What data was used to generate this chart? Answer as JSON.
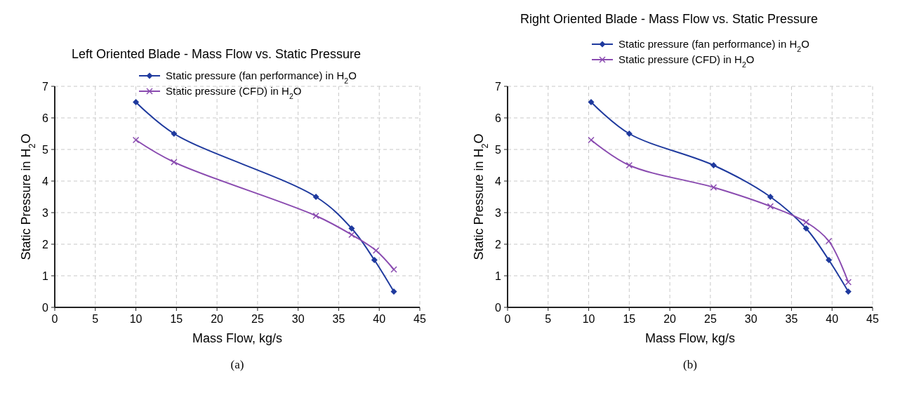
{
  "chart_data": [
    {
      "type": "line",
      "title": "Left Oriented Blade - Mass Flow vs. Static Pressure",
      "xlabel": "Mass Flow, kg/s",
      "ylabel": "Static Pressure in H$_{2}$O",
      "xlim": [
        0,
        45
      ],
      "xticks": [
        0,
        5,
        10,
        15,
        20,
        25,
        30,
        35,
        40,
        45
      ],
      "ylim": [
        0,
        7
      ],
      "yticks": [
        0,
        1,
        2,
        3,
        4,
        5,
        6,
        7
      ],
      "grid": true,
      "legend": "top",
      "annotations": [
        "(a)"
      ],
      "series": [
        {
          "name": "Static pressure (fan performance) in H$_{2}$O",
          "color": "#1f3a9e",
          "marker": "diamond",
          "x": [
            10,
            14.7,
            32.2,
            36.6,
            39.4,
            41.8
          ],
          "values": [
            6.5,
            5.5,
            3.5,
            2.5,
            1.5,
            0.5
          ]
        },
        {
          "name": "Static pressure (CFD) in H$_{2}$O",
          "color": "#8a4bb0",
          "marker": "cross",
          "x": [
            10,
            14.7,
            32.2,
            36.6,
            39.6,
            41.8
          ],
          "values": [
            5.3,
            4.6,
            2.9,
            2.3,
            1.8,
            1.2
          ]
        }
      ]
    },
    {
      "type": "line",
      "title": "Right Oriented Blade - Mass Flow vs. Static Pressure",
      "xlabel": "Mass Flow, kg/s",
      "ylabel": "Static Pressure in H$_{2}$O",
      "xlim": [
        0,
        45
      ],
      "xticks": [
        0,
        5,
        10,
        15,
        20,
        25,
        30,
        35,
        40,
        45
      ],
      "ylim": [
        0,
        7
      ],
      "yticks": [
        0,
        1,
        2,
        3,
        4,
        5,
        6,
        7
      ],
      "grid": true,
      "legend": "top",
      "annotations": [
        "(b)"
      ],
      "series": [
        {
          "name": "Static pressure (fan performance) in H$_{2}$O",
          "color": "#1f3a9e",
          "marker": "diamond",
          "x": [
            10.3,
            15,
            25.4,
            32.4,
            36.8,
            39.6,
            42
          ],
          "values": [
            6.5,
            5.5,
            4.5,
            3.5,
            2.5,
            1.5,
            0.5
          ]
        },
        {
          "name": "Static pressure (CFD) in H$_{2}$O",
          "color": "#8a4bb0",
          "marker": "cross",
          "x": [
            10.3,
            15,
            25.4,
            32.4,
            36.8,
            39.6,
            42
          ],
          "values": [
            5.3,
            4.5,
            3.8,
            3.2,
            2.7,
            2.1,
            0.8
          ]
        }
      ]
    }
  ]
}
